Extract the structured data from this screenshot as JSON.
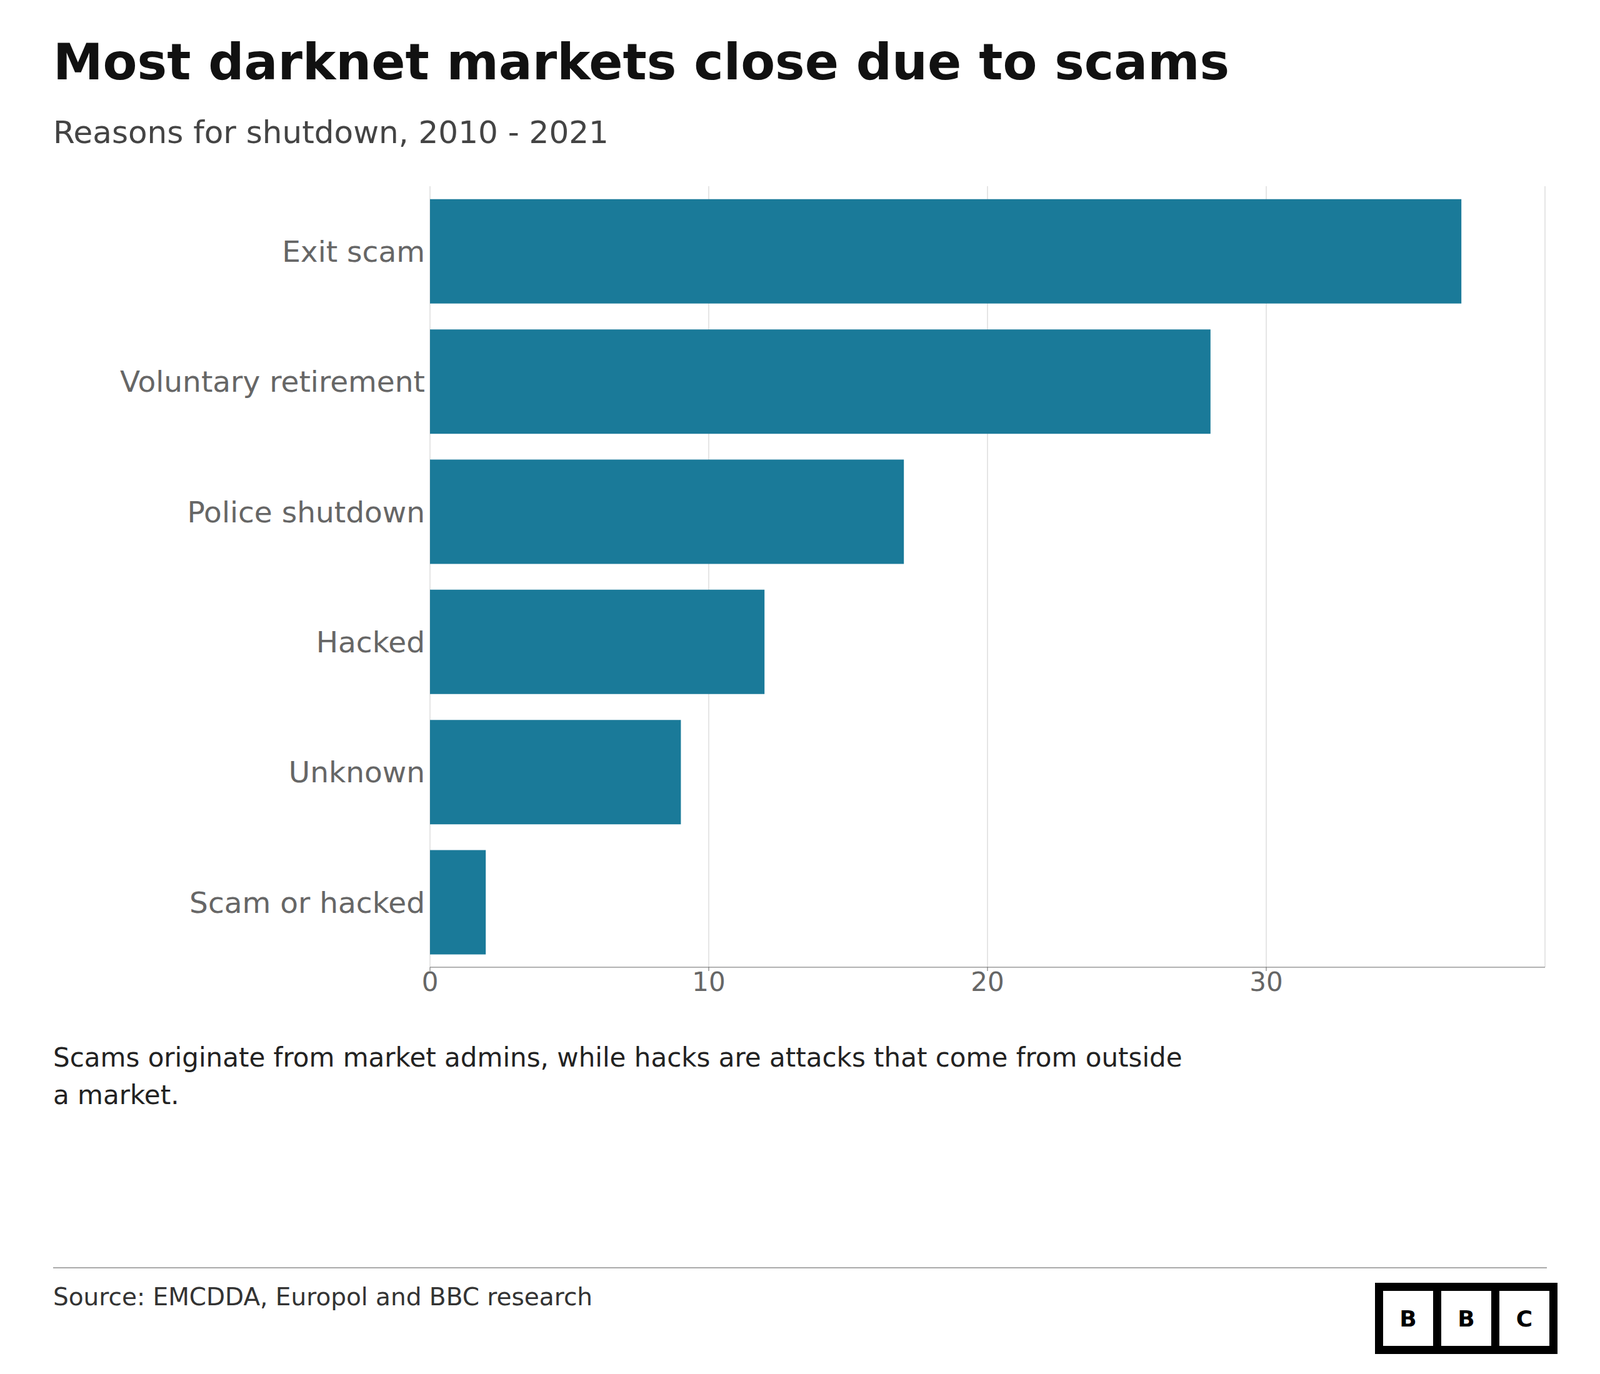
{
  "chart_data": {
    "type": "bar",
    "title": "Most darknet markets close due to scams",
    "subtitle": "Reasons for shutdown, 2010 - 2021",
    "categories": [
      "Exit scam",
      "Voluntary retirement",
      "Police shutdown",
      "Hacked",
      "Unknown",
      "Scam or hacked"
    ],
    "values": [
      37,
      28,
      17,
      12,
      9,
      2
    ],
    "color": "#1a7a99",
    "orientation": "horizontal",
    "xlim": [
      0,
      40
    ],
    "xticks": [
      0,
      10,
      20,
      30
    ],
    "grid": true,
    "annotations": [
      "Scams originate from market admins, while hacks are attacks that come from outside",
      "a market."
    ],
    "source": "Source: EMCDDA, Europol and BBC research",
    "logo": [
      "B",
      "B",
      "C"
    ]
  }
}
